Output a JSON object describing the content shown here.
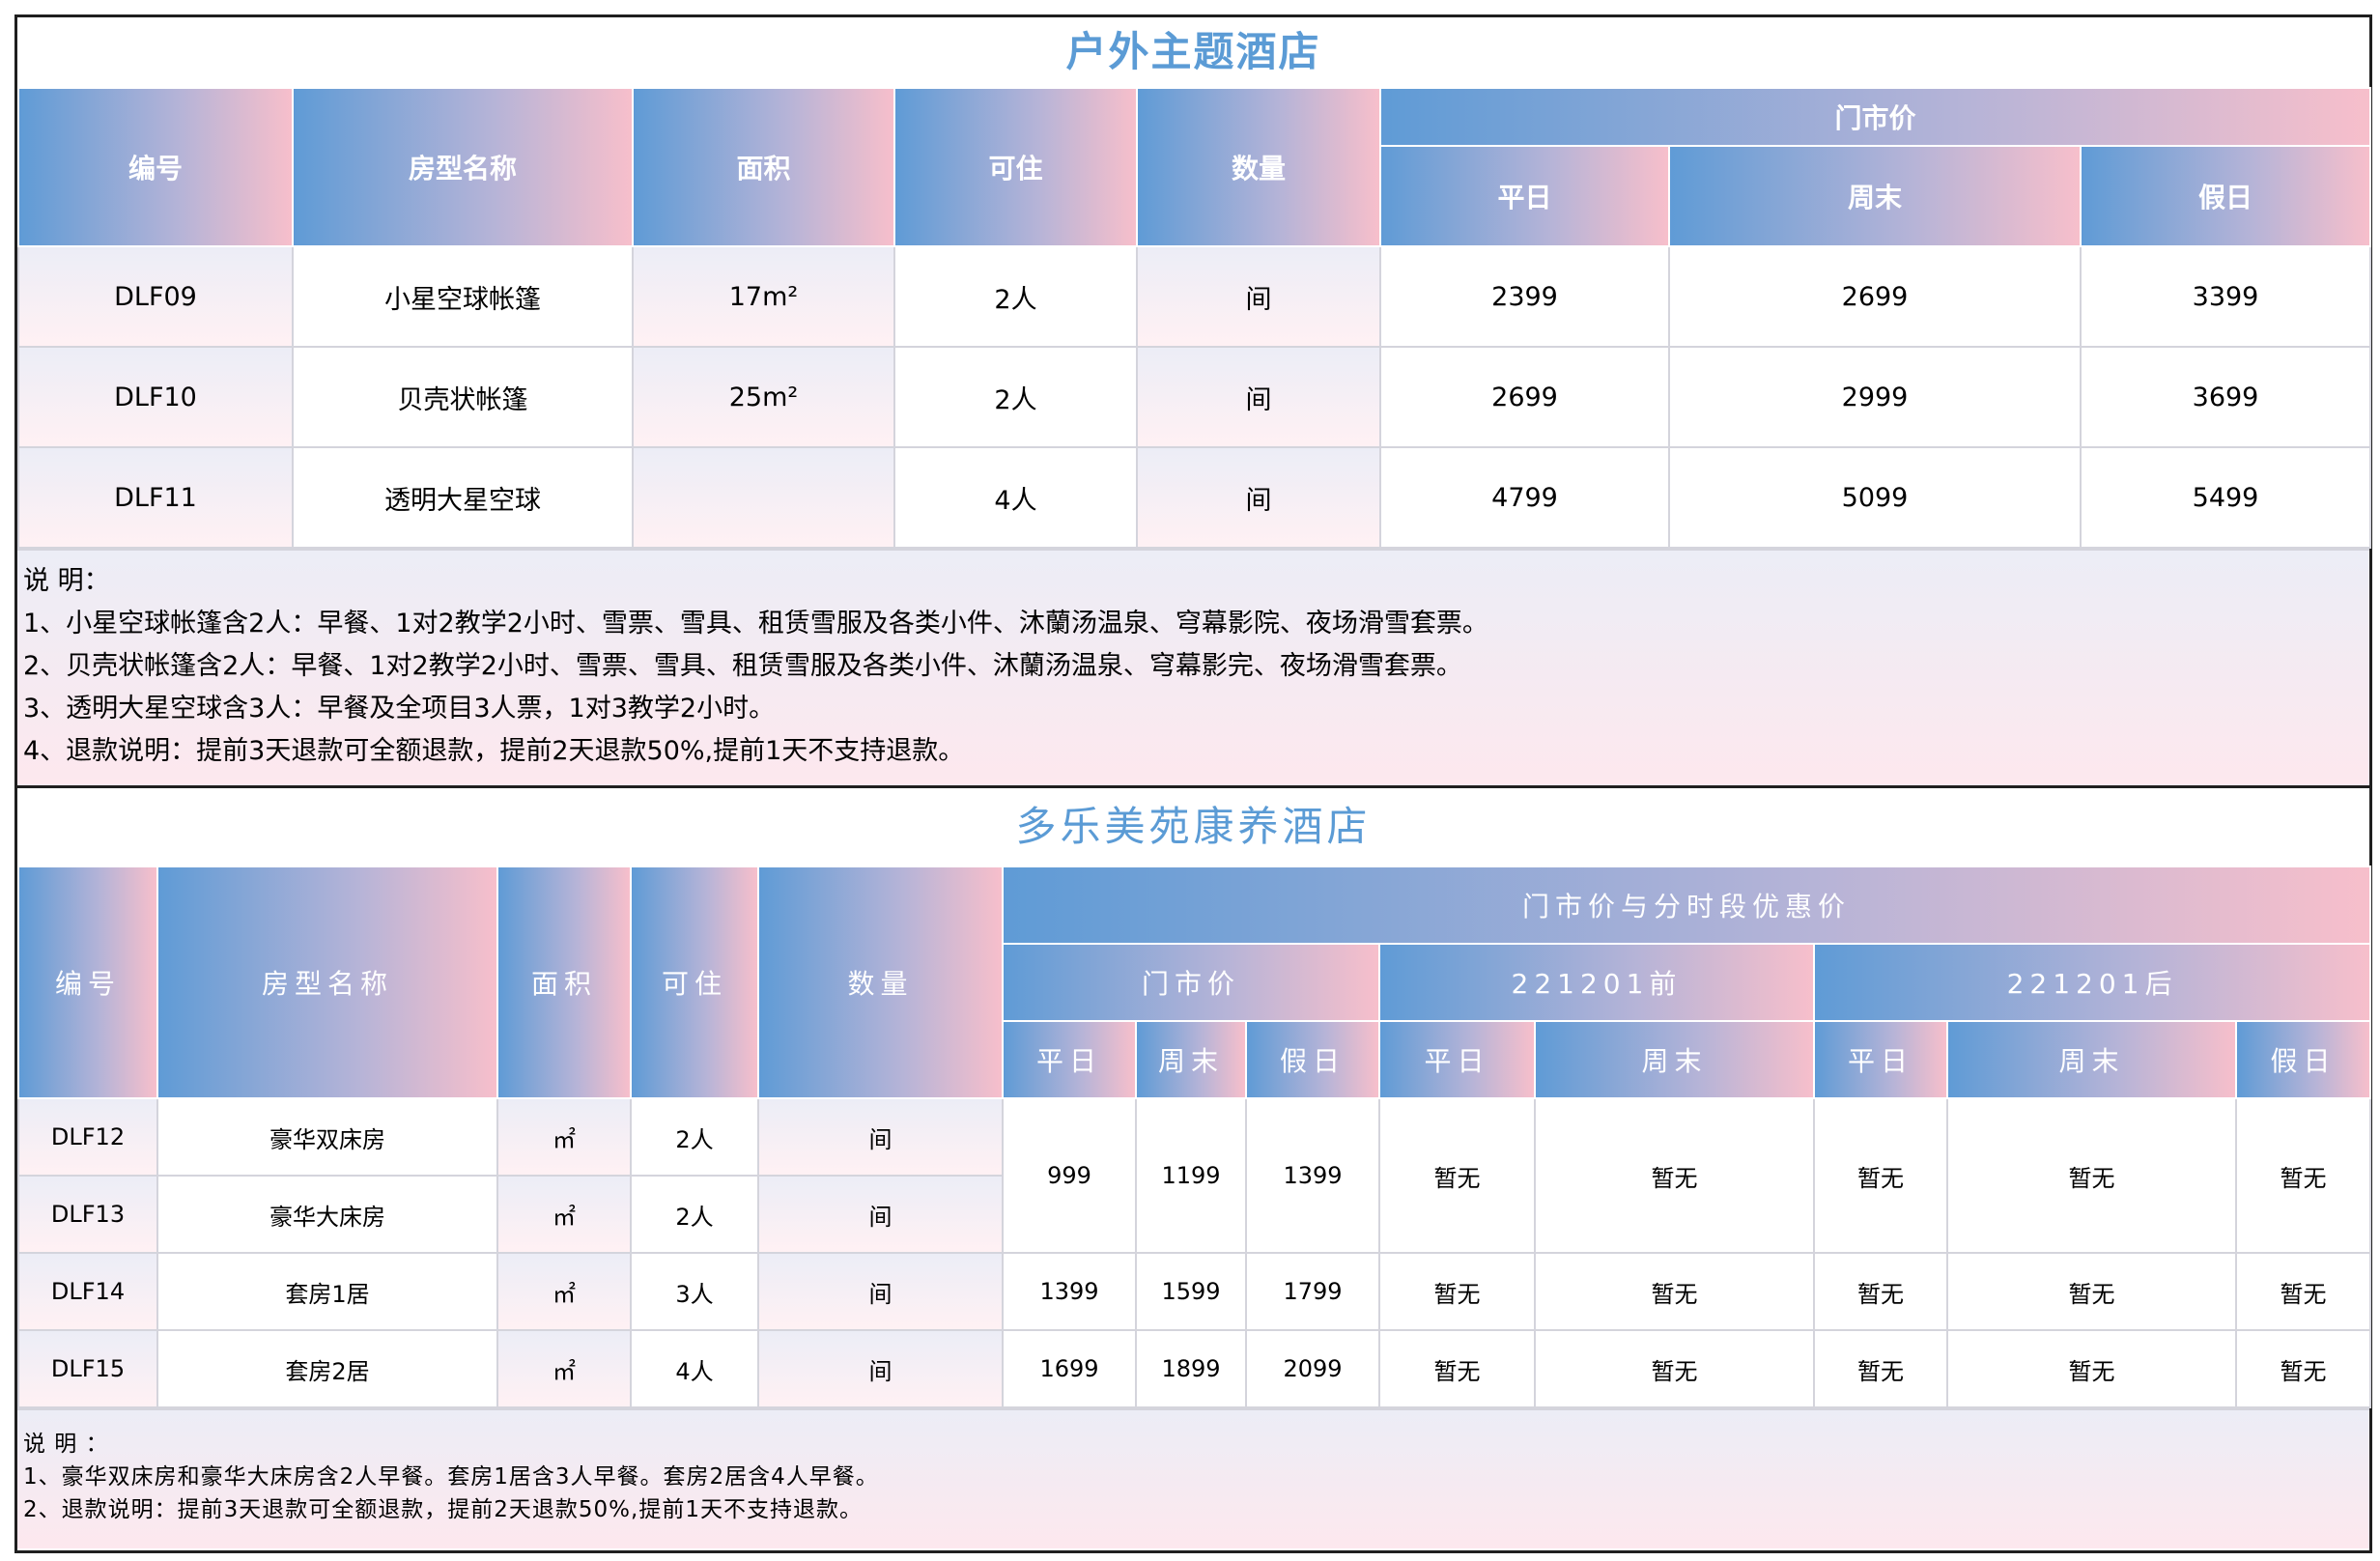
{
  "hotel1": {
    "title": "户外主题酒店",
    "headers": {
      "id": "编号",
      "room": "房型名称",
      "area": "面积",
      "capacity": "可住",
      "quantity": "数量",
      "price_group": "门市价",
      "weekday": "平日",
      "weekend": "周末",
      "holiday": "假日"
    },
    "rows": [
      {
        "id": "DLF09",
        "room": "小星空球帐篷",
        "area": "17m²",
        "capacity": "2人",
        "quantity": "间",
        "weekday": "2399",
        "weekend": "2699",
        "holiday": "3399"
      },
      {
        "id": "DLF10",
        "room": "贝壳状帐篷",
        "area": "25m²",
        "capacity": "2人",
        "quantity": "间",
        "weekday": "2699",
        "weekend": "2999",
        "holiday": "3699"
      },
      {
        "id": "DLF11",
        "room": "透明大星空球",
        "area": "",
        "capacity": "4人",
        "quantity": "间",
        "weekday": "4799",
        "weekend": "5099",
        "holiday": "5499"
      }
    ],
    "notes": [
      "说 明：",
      "1、小星空球帐篷含2人：早餐、1对2教学2小时、雪票、雪具、租赁雪服及各类小件、沐蘭汤温泉、穹幕影院、夜场滑雪套票。",
      "2、贝壳状帐篷含2人：早餐、1对2教学2小时、雪票、雪具、租赁雪服及各类小件、沐蘭汤温泉、穹幕影完、夜场滑雪套票。",
      "3、透明大星空球含3人：早餐及全项目3人票，1对3教学2小时。",
      "4、退款说明：提前3天退款可全额退款，提前2天退款50%,提前1天不支持退款。"
    ]
  },
  "hotel2": {
    "title": "多乐美苑康养酒店",
    "headers": {
      "id": "编号",
      "room": "房型名称",
      "area": "面积",
      "capacity": "可住",
      "quantity": "数量",
      "price_group": "门市价与分时段优惠价",
      "rack": "门市价",
      "before": "221201前",
      "after": "221201后",
      "weekday": "平日",
      "weekend": "周末",
      "holiday": "假日"
    },
    "rows": [
      {
        "id": "DLF12",
        "room": "豪华双床房",
        "area": "㎡",
        "capacity": "2人",
        "quantity": "间"
      },
      {
        "id": "DLF13",
        "room": "豪华大床房",
        "area": "㎡",
        "capacity": "2人",
        "quantity": "间"
      },
      {
        "id": "DLF14",
        "room": "套房1居",
        "area": "㎡",
        "capacity": "3人",
        "quantity": "间"
      },
      {
        "id": "DLF15",
        "room": "套房2居",
        "area": "㎡",
        "capacity": "4人",
        "quantity": "间"
      }
    ],
    "prices": [
      {
        "weekday": "999",
        "weekend": "1199",
        "holiday": "1399",
        "b_weekday": "暂无",
        "b_weekend": "暂无",
        "a_weekday": "暂无",
        "a_weekend": "暂无",
        "a_holiday": "暂无"
      },
      {
        "weekday": "1399",
        "weekend": "1599",
        "holiday": "1799",
        "b_weekday": "暂无",
        "b_weekend": "暂无",
        "a_weekday": "暂无",
        "a_weekend": "暂无",
        "a_holiday": "暂无"
      },
      {
        "weekday": "1699",
        "weekend": "1899",
        "holiday": "2099",
        "b_weekday": "暂无",
        "b_weekend": "暂无",
        "a_weekday": "暂无",
        "a_weekend": "暂无",
        "a_holiday": "暂无"
      }
    ],
    "notes": [
      "说 明 ：",
      "1、豪华双床房和豪华大床房含2人早餐。套房1居含3人早餐。套房2居含4人早餐。",
      "2、退款说明：提前3天退款可全额退款，提前2天退款50%,提前1天不支持退款。"
    ]
  },
  "colors": {
    "title_blue": "#5b9bd5",
    "header_gradient": [
      "#5f9bd6",
      "#b7b4d7",
      "#f7bfcb"
    ],
    "cell_gradient": [
      "#ecedf6",
      "#fff1f4"
    ],
    "border": "#1f1f1f"
  }
}
